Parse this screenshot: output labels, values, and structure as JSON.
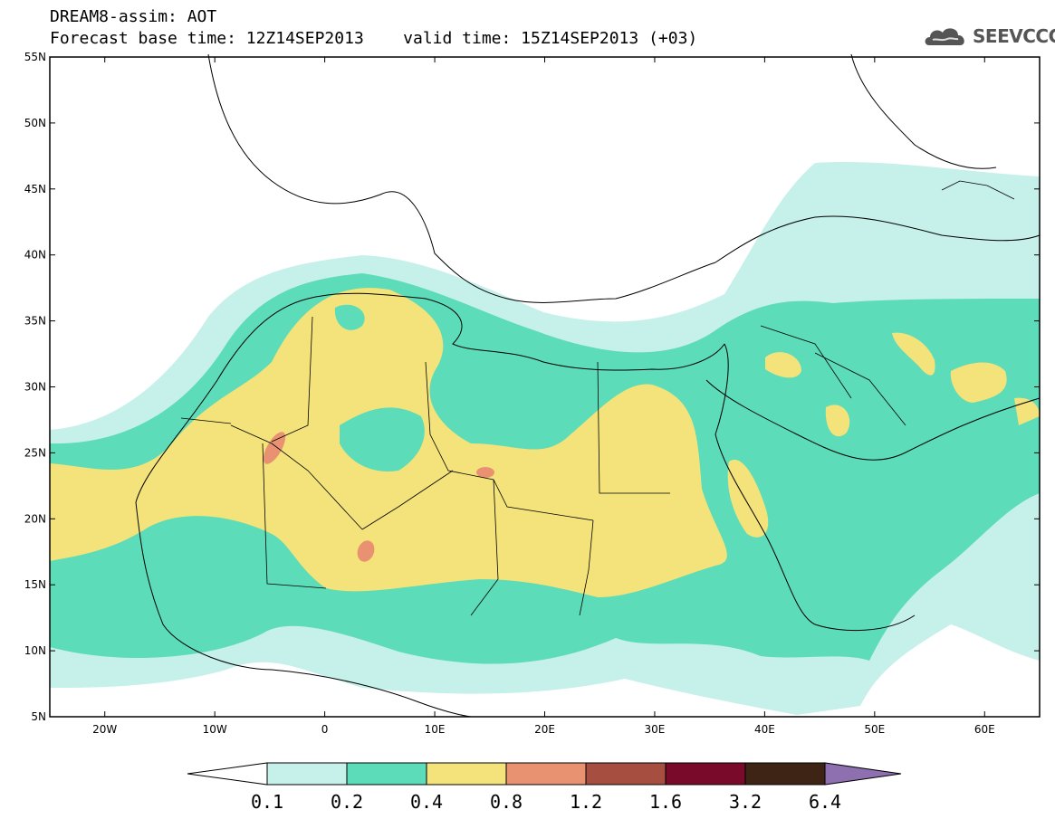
{
  "header": {
    "line1": "DREAM8-assim: AOT",
    "base_time": "Forecast base time: 12Z14SEP2013",
    "valid_time": "valid time: 15Z14SEP2013 (+03)"
  },
  "logo": {
    "text": "SEEVCCC",
    "icon": "cloud-icon"
  },
  "map": {
    "lon_range": [
      -25,
      65
    ],
    "lat_range": [
      5,
      55
    ],
    "lat_ticks": [
      "5N",
      "10N",
      "15N",
      "20N",
      "25N",
      "30N",
      "35N",
      "40N",
      "45N",
      "50N",
      "55N"
    ],
    "lon_ticks": [
      "20W",
      "10W",
      "0",
      "10E",
      "20E",
      "30E",
      "40E",
      "50E",
      "60E"
    ]
  },
  "colorbar": {
    "labels": [
      "0.1",
      "0.2",
      "0.4",
      "0.8",
      "1.2",
      "1.6",
      "3.2",
      "6.4"
    ],
    "colors": [
      "#c6f0ea",
      "#5cdcb8",
      "#f4e37a",
      "#e99272",
      "#a64f40",
      "#7a0a2a",
      "#3d2414",
      "#8e6fb0"
    ],
    "under_color": "#ffffff"
  },
  "chart_data": {
    "type": "heatmap",
    "title": "DREAM8-assim: AOT",
    "variable": "AOT",
    "levels": [
      0.1,
      0.2,
      0.4,
      0.8,
      1.2,
      1.6,
      3.2,
      6.4
    ]
  }
}
